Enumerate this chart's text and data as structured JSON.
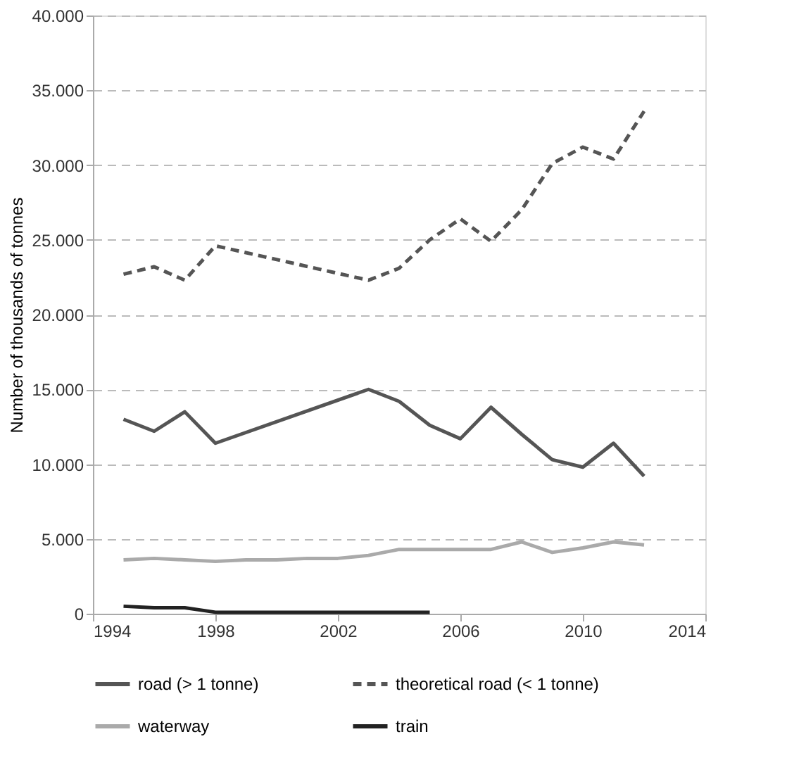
{
  "chart_data": {
    "type": "line",
    "ylabel": "Number of thousands of tonnes",
    "xlim": [
      1994,
      2014
    ],
    "xticks": [
      1994,
      1998,
      2002,
      2006,
      2010,
      2014
    ],
    "ylim": [
      0,
      40000
    ],
    "yticks": [
      {
        "value": 0,
        "label": "0"
      },
      {
        "value": 5000,
        "label": "5.000"
      },
      {
        "value": 10000,
        "label": "10.000"
      },
      {
        "value": 15000,
        "label": "15.000"
      },
      {
        "value": 20000,
        "label": "20.000"
      },
      {
        "value": 25000,
        "label": "25.000"
      },
      {
        "value": 30000,
        "label": "30.000"
      },
      {
        "value": 35000,
        "label": "35.000"
      },
      {
        "value": 40000,
        "label": "40.000"
      }
    ],
    "grid": "y",
    "legend": "bottom",
    "marker": "none",
    "series": [
      {
        "name": "road (> 1 tonne)",
        "color": "#555555",
        "line_style": "solid",
        "x": [
          1995,
          1996,
          1997,
          1998,
          2003,
          2004,
          2005,
          2006,
          2007,
          2008,
          2009,
          2010,
          2011,
          2012
        ],
        "values": [
          13000,
          12200,
          13500,
          11400,
          15000,
          14200,
          12600,
          11700,
          13800,
          12000,
          10300,
          9800,
          11400,
          9200
        ]
      },
      {
        "name": "theoretical road (< 1 tonne)",
        "color": "#555555",
        "line_style": "dashed",
        "x": [
          1995,
          1996,
          1997,
          1998,
          2003,
          2004,
          2005,
          2006,
          2007,
          2008,
          2009,
          2010,
          2011,
          2012
        ],
        "values": [
          22700,
          23200,
          22300,
          24600,
          22300,
          23100,
          25000,
          26400,
          24900,
          27000,
          30100,
          31200,
          30400,
          33600
        ]
      },
      {
        "name": "waterway",
        "color": "#aaaaaa",
        "line_style": "solid",
        "x": [
          1995,
          1996,
          1997,
          1998,
          1999,
          2000,
          2001,
          2002,
          2003,
          2004,
          2005,
          2006,
          2007,
          2008,
          2009,
          2010,
          2011,
          2012
        ],
        "values": [
          3600,
          3700,
          3600,
          3500,
          3600,
          3600,
          3700,
          3700,
          3900,
          4300,
          4300,
          4300,
          4300,
          4800,
          4100,
          4400,
          4800,
          4600
        ]
      },
      {
        "name": "train",
        "color": "#222222",
        "line_style": "solid",
        "x": [
          1995,
          1996,
          1997,
          1998,
          1999,
          2000,
          2001,
          2002,
          2003,
          2004,
          2005
        ],
        "values": [
          500,
          400,
          400,
          100,
          100,
          100,
          100,
          100,
          100,
          100,
          100
        ]
      }
    ]
  }
}
